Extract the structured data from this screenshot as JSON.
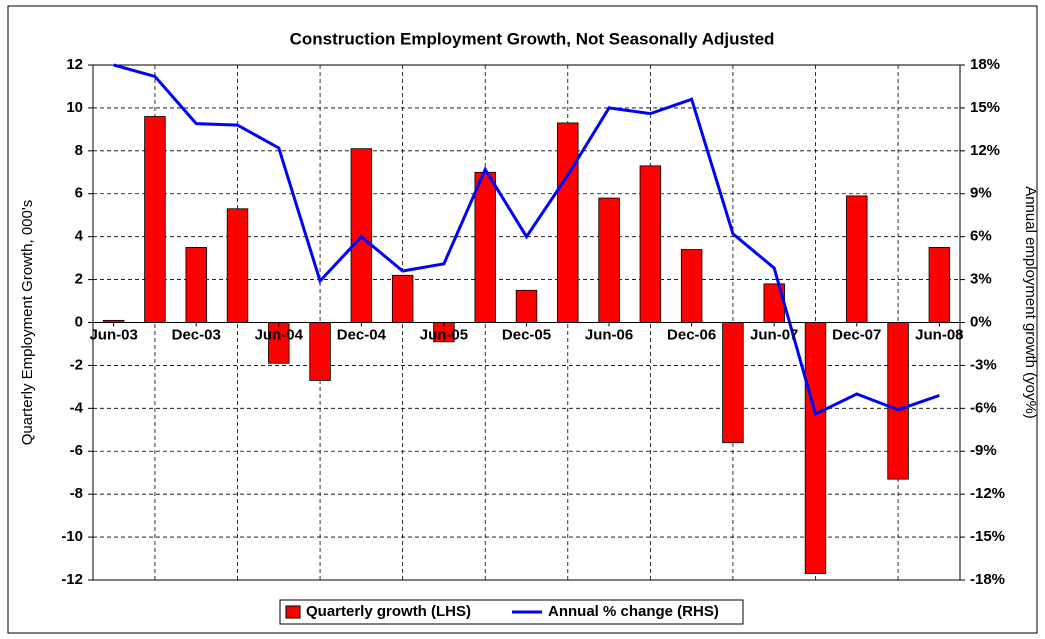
{
  "chart_data": {
    "type": "bar-line",
    "title": "Construction Employment Growth, Not Seasonally Adjusted",
    "y_label": "Quarterly Employment Growth, 000's",
    "y2_label": "Annual employment growth (yoy%)",
    "categories": [
      "Jun-03",
      null,
      "Dec-03",
      null,
      "Jun-04",
      null,
      "Dec-04",
      null,
      "Jun-05",
      null,
      "Dec-05",
      null,
      "Jun-06",
      null,
      "Dec-06",
      null,
      "Jun-07",
      null,
      "Dec-07",
      null,
      "Jun-08"
    ],
    "series": [
      {
        "name": "Quarterly growth (LHS)",
        "type": "bar",
        "color": "#ff0000",
        "values": [
          0.1,
          9.6,
          3.5,
          5.3,
          -1.9,
          -2.7,
          8.1,
          2.2,
          -0.9,
          7.0,
          1.5,
          9.3,
          5.8,
          7.3,
          3.4,
          -5.6,
          1.8,
          -11.7,
          5.9,
          -7.3,
          3.5
        ]
      },
      {
        "name": "Annual % change (RHS)",
        "type": "line",
        "axis": "y2",
        "color": "#0000ff",
        "values": [
          18.0,
          17.2,
          13.9,
          13.8,
          12.2,
          2.9,
          6.0,
          3.6,
          4.1,
          10.7,
          6.0,
          10.3,
          15.0,
          14.6,
          15.6,
          6.2,
          3.8,
          -6.4,
          -5.0,
          -6.1,
          -5.1
        ]
      }
    ],
    "ylim": [
      -12,
      12
    ],
    "yticks": [
      -12,
      -10,
      -8,
      -6,
      -4,
      -2,
      0,
      2,
      4,
      6,
      8,
      10,
      12
    ],
    "y2lim": [
      -18,
      18
    ],
    "y2ticks": [
      {
        "value": -18,
        "label": "-18%"
      },
      {
        "value": -15,
        "label": "-15%"
      },
      {
        "value": -12,
        "label": "-12%"
      },
      {
        "value": -9,
        "label": "-9%"
      },
      {
        "value": -6,
        "label": "-6%"
      },
      {
        "value": -3,
        "label": "-3%"
      },
      {
        "value": 0,
        "label": "0%"
      },
      {
        "value": 3,
        "label": "3%"
      },
      {
        "value": 6,
        "label": "6%"
      },
      {
        "value": 9,
        "label": "9%"
      },
      {
        "value": 12,
        "label": "12%"
      },
      {
        "value": 15,
        "label": "15%"
      },
      {
        "value": 18,
        "label": "18%"
      }
    ],
    "grid": true,
    "legend": "bottom"
  }
}
